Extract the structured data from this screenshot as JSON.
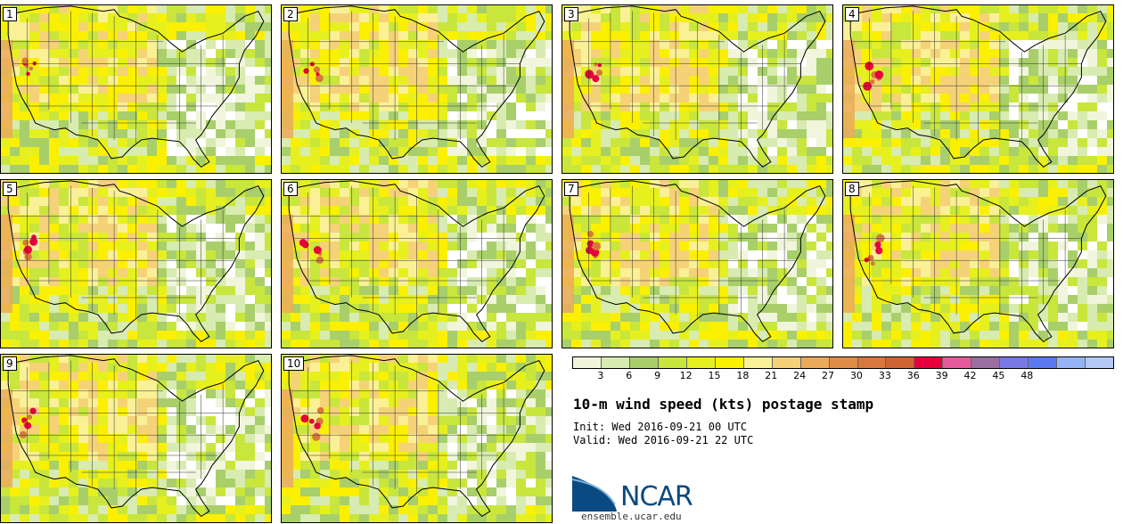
{
  "product": {
    "title": "10-m wind speed (kts) postage stamp",
    "init": "Init: Wed 2016-09-21 00 UTC",
    "valid": "Valid: Wed 2016-09-21 22 UTC"
  },
  "members": [
    "1",
    "2",
    "3",
    "4",
    "5",
    "6",
    "7",
    "8",
    "9",
    "10"
  ],
  "colorbar": {
    "colors": [
      "#f0f5dc",
      "#d8ebb0",
      "#a8cf6a",
      "#c8e63c",
      "#e6f01e",
      "#faf000",
      "#faf096",
      "#f5d278",
      "#ebaa5a",
      "#e18c46",
      "#d7783c",
      "#cd6432",
      "#e6003c",
      "#e65a9b",
      "#9b6ea0",
      "#7878e6",
      "#5a78f0",
      "#96b4f5",
      "#b4c8f5"
    ],
    "labels": [
      "3",
      "6",
      "9",
      "12",
      "15",
      "18",
      "21",
      "24",
      "27",
      "30",
      "33",
      "36",
      "39",
      "42",
      "45",
      "48"
    ]
  },
  "logo": {
    "name": "NCAR",
    "url": "ensemble.ucar.edu",
    "colors": {
      "blue": "#0a4a80",
      "light": "#7fb3e0"
    }
  }
}
